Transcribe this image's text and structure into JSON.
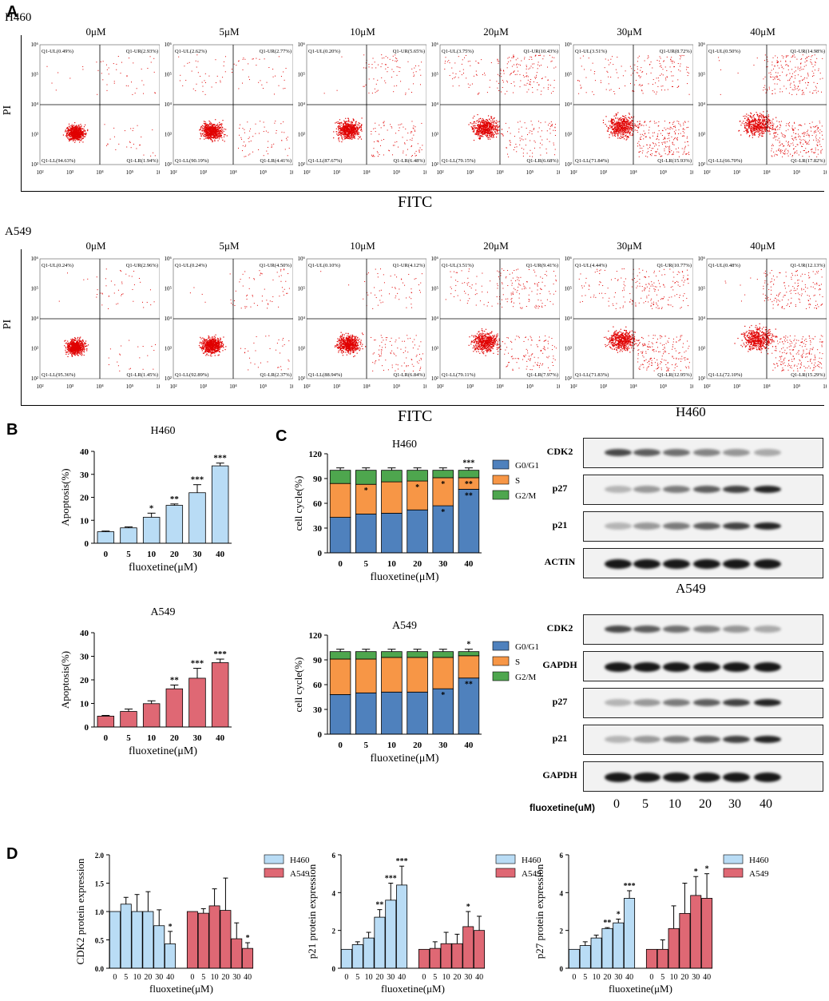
{
  "panels": {
    "A": "A",
    "B": "B",
    "C": "C",
    "D": "D"
  },
  "flow": {
    "rows": [
      {
        "cell": "H460",
        "ylabel": "PI",
        "xlabel": "FITC",
        "plots": [
          {
            "conc": "0μM",
            "UL": "Q1-UL(0.49%)",
            "UR": "Q1-UR(2.93%)",
            "LL": "Q1-LL(94.63%)",
            "LR": "Q1-LR(1.94%)"
          },
          {
            "conc": "5μM",
            "UL": "Q1-UL(2.62%)",
            "UR": "Q1-UR(2.77%)",
            "LL": "Q1-LL(90.19%)",
            "LR": "Q1-LR(4.41%)"
          },
          {
            "conc": "10μM",
            "UL": "Q1-UL(0.20%)",
            "UR": "Q1-UR(5.65%)",
            "LL": "Q1-LL(87.67%)",
            "LR": "Q1-LR(6.48%)"
          },
          {
            "conc": "20μM",
            "UL": "Q1-UL(3.75%)",
            "UR": "Q1-UR(10.43%)",
            "LL": "Q1-LL(79.15%)",
            "LR": "Q1-LR(6.68%)"
          },
          {
            "conc": "30μM",
            "UL": "Q1-UL(3.51%)",
            "UR": "Q1-UR(8.72%)",
            "LL": "Q1-LL(71.84%)",
            "LR": "Q1-LR(15.93%)"
          },
          {
            "conc": "40μM",
            "UL": "Q1-UL(0.50%)",
            "UR": "Q1-UR(14.98%)",
            "LL": "Q1-LL(66.70%)",
            "LR": "Q1-LR(17.82%)"
          }
        ]
      },
      {
        "cell": "A549",
        "ylabel": "PI",
        "xlabel": "FITC",
        "plots": [
          {
            "conc": "0μM",
            "UL": "Q1-UL(0.24%)",
            "UR": "Q1-UR(2.96%)",
            "LL": "Q1-LL(95.36%)",
            "LR": "Q1-LR(1.45%)"
          },
          {
            "conc": "5μM",
            "UL": "Q1-UL(0.24%)",
            "UR": "Q1-UR(4.50%)",
            "LL": "Q1-LL(92.89%)",
            "LR": "Q1-LR(2.37%)"
          },
          {
            "conc": "10μM",
            "UL": "Q1-UL(0.10%)",
            "UR": "Q1-UR(4.12%)",
            "LL": "Q1-LL(88.94%)",
            "LR": "Q1-LR(6.84%)"
          },
          {
            "conc": "20μM",
            "UL": "Q1-UL(3.51%)",
            "UR": "Q1-UR(9.41%)",
            "LL": "Q1-LL(79.11%)",
            "LR": "Q1-LR(7.97%)"
          },
          {
            "conc": "30μM",
            "UL": "Q1-UL(4.44%)",
            "UR": "Q1-UR(10.77%)",
            "LL": "Q1-LL(71.83%)",
            "LR": "Q1-LR(12.95%)"
          },
          {
            "conc": "40μM",
            "UL": "Q1-UL(0.48%)",
            "UR": "Q1-UR(12.13%)",
            "LL": "Q1-LL(72.10%)",
            "LR": "Q1-LR(15.29%)"
          }
        ]
      }
    ],
    "xticks": [
      "10²",
      "10³",
      "10⁴",
      "10⁵",
      "10⁶"
    ],
    "yticks": [
      "10²",
      "10³",
      "10⁴",
      "10⁵",
      "10⁶"
    ]
  },
  "blots": {
    "h460": {
      "title": "H460",
      "rows": [
        "CDK2",
        "p27",
        "p21",
        "ACTIN"
      ]
    },
    "a549": {
      "title": "A549",
      "rows": [
        "CDK2",
        "GAPDH",
        "p27",
        "p21",
        "GAPDH"
      ]
    },
    "axis_label": "fluoxetine(uM)",
    "lanes": [
      "0",
      "5",
      "10",
      "20",
      "30",
      "40"
    ]
  },
  "colors": {
    "h460": "#b9dcf5",
    "a549": "#df6874",
    "g0g1": "#4f81bd",
    "s": "#f79646",
    "g2m": "#4ea64e",
    "dots": "#e00000"
  },
  "chart_data": [
    {
      "id": "B-H460",
      "type": "bar",
      "title": "H460",
      "xlabel": "fluoxetine(μM)",
      "ylabel": "Apoptosis(%)",
      "categories": [
        "0",
        "5",
        "10",
        "20",
        "30",
        "40"
      ],
      "values": [
        5,
        6.7,
        11.3,
        16.5,
        22,
        33.7
      ],
      "errors": [
        0.3,
        0.4,
        1.8,
        0.6,
        3.5,
        1.2
      ],
      "sig": [
        "",
        "",
        "*",
        "**",
        "***",
        "***"
      ],
      "ylim": [
        0,
        40
      ],
      "yticks": [
        "0",
        "10",
        "20",
        "30",
        "40"
      ]
    },
    {
      "id": "B-A549",
      "type": "bar",
      "title": "A549",
      "xlabel": "fluoxetine(μM)",
      "ylabel": "Apoptosis(%)",
      "categories": [
        "0",
        "5",
        "10",
        "20",
        "30",
        "40"
      ],
      "values": [
        4.6,
        6.6,
        9.9,
        16.2,
        20.7,
        27.3
      ],
      "errors": [
        0.3,
        1,
        1.2,
        1.6,
        4.2,
        1.5
      ],
      "sig": [
        "",
        "",
        "",
        "**",
        "***",
        "***"
      ],
      "ylim": [
        0,
        40
      ],
      "yticks": [
        "0",
        "10",
        "20",
        "30",
        "40"
      ]
    },
    {
      "id": "C-H460",
      "type": "stacked-bar",
      "title": "H460",
      "xlabel": "fluoxetine(μM)",
      "ylabel": "cell cycle(%)",
      "categories": [
        "0",
        "5",
        "10",
        "20",
        "30",
        "40"
      ],
      "ylim": [
        0,
        120
      ],
      "yticks": [
        "0",
        "30",
        "60",
        "90",
        "120"
      ],
      "series": [
        {
          "name": "G0/G1",
          "values": [
            43,
            47,
            48,
            52,
            57,
            77
          ]
        },
        {
          "name": "S",
          "values": [
            41,
            36,
            38,
            35,
            34,
            14
          ]
        },
        {
          "name": "G2/M",
          "values": [
            16,
            17,
            14,
            13,
            9,
            9
          ]
        }
      ],
      "sig": {
        "G0/G1": [
          "",
          "",
          "",
          "",
          "*",
          "**"
        ],
        "S": [
          "",
          "*",
          "",
          "*",
          "*",
          "**"
        ],
        "top": [
          "",
          "",
          "",
          "",
          "",
          "***"
        ]
      },
      "legend": [
        "G0/G1",
        "S",
        "G2/M"
      ]
    },
    {
      "id": "C-A549",
      "type": "stacked-bar",
      "title": "A549",
      "xlabel": "fluoxetine(μM)",
      "ylabel": "cell cycle(%)",
      "categories": [
        "0",
        "5",
        "10",
        "20",
        "30",
        "40"
      ],
      "ylim": [
        0,
        120
      ],
      "yticks": [
        "0",
        "30",
        "60",
        "90",
        "120"
      ],
      "series": [
        {
          "name": "G0/G1",
          "values": [
            48,
            50,
            51,
            51,
            55,
            68
          ]
        },
        {
          "name": "S",
          "values": [
            43,
            41,
            42,
            42,
            38,
            27
          ]
        },
        {
          "name": "G2/M",
          "values": [
            9,
            9,
            7,
            7,
            7,
            5
          ]
        }
      ],
      "sig": {
        "G0/G1": [
          "",
          "",
          "",
          "",
          "*",
          "**"
        ],
        "S": [
          "",
          "",
          "",
          "",
          "",
          ""
        ],
        "top": [
          "",
          "",
          "",
          "",
          "",
          "*"
        ]
      },
      "legend": [
        "G0/G1",
        "S",
        "G2/M"
      ]
    },
    {
      "id": "D-CDK2",
      "type": "bar",
      "ylabel": "CDK2  protein expression",
      "xlabel": "fluoxetine(μM)",
      "ylim": [
        0,
        2
      ],
      "yticks": [
        "0.0",
        "0.5",
        "1.0",
        "1.5",
        "2.0"
      ],
      "categories": [
        "0",
        "5",
        "10",
        "20",
        "30",
        "40"
      ],
      "series": [
        {
          "name": "H460",
          "values": [
            1,
            1.13,
            1.0,
            1.0,
            0.75,
            0.43
          ],
          "errors": [
            0,
            0.12,
            0.3,
            0.35,
            0.28,
            0.22
          ]
        },
        {
          "name": "A549",
          "values": [
            1,
            0.97,
            1.1,
            1.02,
            0.52,
            0.35
          ],
          "errors": [
            0,
            0.08,
            0.3,
            0.57,
            0.28,
            0.1
          ]
        }
      ],
      "sig": {
        "H460": [
          "",
          "",
          "",
          "",
          "",
          "*"
        ],
        "A549": [
          "",
          "",
          "",
          "",
          "",
          "*"
        ]
      }
    },
    {
      "id": "D-p21",
      "type": "bar",
      "ylabel": "p21 protein expression",
      "xlabel": "fluoxetine(μM)",
      "ylim": [
        0,
        6
      ],
      "yticks": [
        "0",
        "2",
        "4",
        "6"
      ],
      "categories": [
        "0",
        "5",
        "10",
        "20",
        "30",
        "40"
      ],
      "series": [
        {
          "name": "H460",
          "values": [
            1,
            1.25,
            1.6,
            2.7,
            3.6,
            4.4
          ],
          "errors": [
            0,
            0.15,
            0.3,
            0.4,
            0.9,
            1.0
          ]
        },
        {
          "name": "A549",
          "values": [
            1,
            1.05,
            1.3,
            1.3,
            2.2,
            2.0
          ],
          "errors": [
            0,
            0.35,
            0.6,
            0.5,
            0.8,
            0.75
          ]
        }
      ],
      "sig": {
        "H460": [
          "",
          "",
          "",
          "**",
          "***",
          "***"
        ],
        "A549": [
          "",
          "",
          "",
          "",
          "*",
          ""
        ]
      }
    },
    {
      "id": "D-p27",
      "type": "bar",
      "ylabel": "p27 protein expression",
      "xlabel": "fluoxetine(μM)",
      "ylim": [
        0,
        6
      ],
      "yticks": [
        "0",
        "2",
        "4",
        "6"
      ],
      "categories": [
        "0",
        "5",
        "10",
        "20",
        "30",
        "40"
      ],
      "series": [
        {
          "name": "H460",
          "values": [
            1,
            1.2,
            1.6,
            2.1,
            2.4,
            3.7
          ],
          "errors": [
            0,
            0.2,
            0.15,
            0.05,
            0.2,
            0.4
          ]
        },
        {
          "name": "A549",
          "values": [
            1,
            1.0,
            2.1,
            2.9,
            3.85,
            3.7
          ],
          "errors": [
            0,
            0.5,
            1.2,
            1.6,
            1.0,
            1.3
          ]
        }
      ],
      "sig": {
        "H460": [
          "",
          "",
          "",
          "**",
          "*",
          "***"
        ],
        "A549": [
          "",
          "",
          "",
          "",
          "*",
          "*"
        ]
      }
    }
  ]
}
